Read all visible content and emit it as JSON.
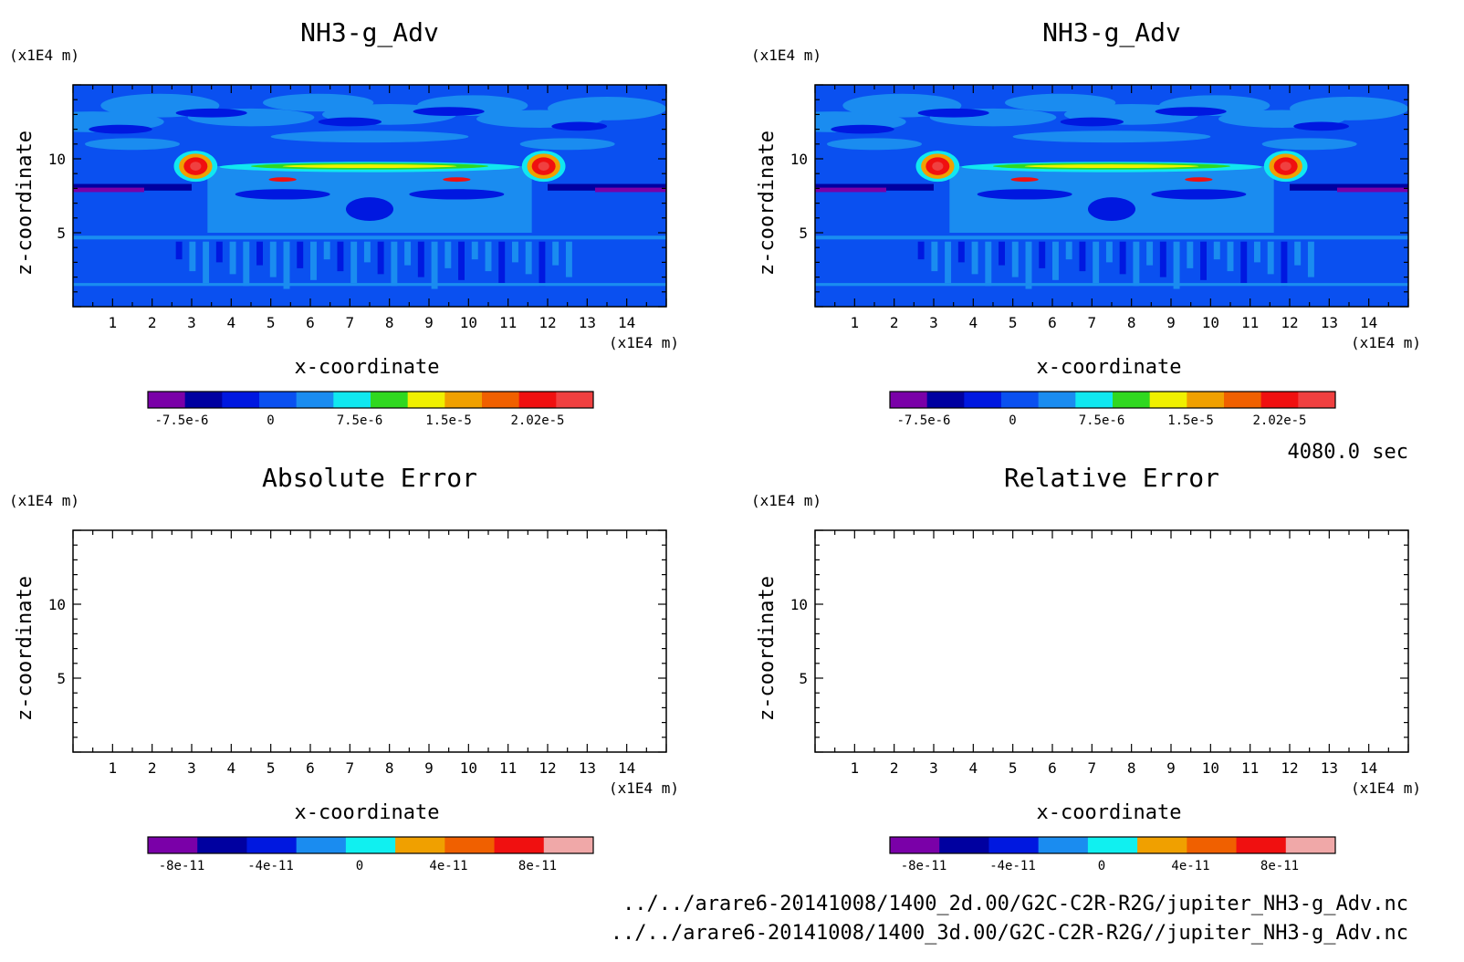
{
  "footer": {
    "time": "4080.0 sec",
    "file1": "../../arare6-20141008/1400_2d.00/G2C-C2R-R2G/jupiter_NH3-g_Adv.nc",
    "file2": "../../arare6-20141008/1400_3d.00/G2C-C2R-R2G//jupiter_NH3-g_Adv.nc"
  },
  "chart_data": [
    {
      "id": "p1",
      "type": "heatmap",
      "title": "NH3-g_Adv",
      "xlabel": "x-coordinate",
      "ylabel": "z-coordinate",
      "x_unit": "(x1E4 m)",
      "y_unit": "(x1E4 m)",
      "xlim": [
        0,
        15
      ],
      "ylim": [
        0,
        15
      ],
      "x_ticks": [
        "1",
        "2",
        "3",
        "4",
        "5",
        "6",
        "7",
        "8",
        "9",
        "10",
        "11",
        "12",
        "13",
        "14"
      ],
      "y_ticks": [
        "5",
        "10"
      ],
      "colorbar": {
        "colors": [
          "#7a00a8",
          "#0000a0",
          "#0018e0",
          "#0a50f0",
          "#1a8cf0",
          "#10e8f0",
          "#30d820",
          "#f0f000",
          "#f0a000",
          "#f06000",
          "#f01010",
          "#f04040"
        ],
        "labels": [
          "-7.5e-6",
          "0",
          "7.5e-6",
          "1.5e-5",
          "2.02e-5"
        ]
      },
      "has_field": true
    },
    {
      "id": "p2",
      "type": "heatmap",
      "title": "NH3-g_Adv",
      "xlabel": "x-coordinate",
      "ylabel": "z-coordinate",
      "x_unit": "(x1E4 m)",
      "y_unit": "(x1E4 m)",
      "xlim": [
        0,
        15
      ],
      "ylim": [
        0,
        15
      ],
      "x_ticks": [
        "1",
        "2",
        "3",
        "4",
        "5",
        "6",
        "7",
        "8",
        "9",
        "10",
        "11",
        "12",
        "13",
        "14"
      ],
      "y_ticks": [
        "5",
        "10"
      ],
      "colorbar": {
        "colors": [
          "#7a00a8",
          "#0000a0",
          "#0018e0",
          "#0a50f0",
          "#1a8cf0",
          "#10e8f0",
          "#30d820",
          "#f0f000",
          "#f0a000",
          "#f06000",
          "#f01010",
          "#f04040"
        ],
        "labels": [
          "-7.5e-6",
          "0",
          "7.5e-6",
          "1.5e-5",
          "2.02e-5"
        ]
      },
      "has_field": true
    },
    {
      "id": "p3",
      "type": "heatmap",
      "title": "Absolute Error",
      "xlabel": "x-coordinate",
      "ylabel": "z-coordinate",
      "x_unit": "(x1E4 m)",
      "y_unit": "(x1E4 m)",
      "xlim": [
        0,
        15
      ],
      "ylim": [
        0,
        15
      ],
      "x_ticks": [
        "1",
        "2",
        "3",
        "4",
        "5",
        "6",
        "7",
        "8",
        "9",
        "10",
        "11",
        "12",
        "13",
        "14"
      ],
      "y_ticks": [
        "5",
        "10"
      ],
      "colorbar": {
        "colors": [
          "#7a00a8",
          "#0000a0",
          "#0018e0",
          "#1a8cf0",
          "#10f0f0",
          "#f0a000",
          "#f06000",
          "#f01010",
          "#f0a8a8"
        ],
        "labels": [
          "-8e-11",
          "-4e-11",
          "0",
          "4e-11",
          "8e-11"
        ]
      },
      "has_field": false
    },
    {
      "id": "p4",
      "type": "heatmap",
      "title": "Relative Error",
      "xlabel": "x-coordinate",
      "ylabel": "z-coordinate",
      "x_unit": "(x1E4 m)",
      "y_unit": "(x1E4 m)",
      "xlim": [
        0,
        15
      ],
      "ylim": [
        0,
        15
      ],
      "x_ticks": [
        "1",
        "2",
        "3",
        "4",
        "5",
        "6",
        "7",
        "8",
        "9",
        "10",
        "11",
        "12",
        "13",
        "14"
      ],
      "y_ticks": [
        "5",
        "10"
      ],
      "colorbar": {
        "colors": [
          "#7a00a8",
          "#0000a0",
          "#0018e0",
          "#1a8cf0",
          "#10f0f0",
          "#f0a000",
          "#f06000",
          "#f01010",
          "#f0a8a8"
        ],
        "labels": [
          "-8e-11",
          "-4e-11",
          "0",
          "4e-11",
          "8e-11"
        ]
      },
      "has_field": false
    }
  ]
}
